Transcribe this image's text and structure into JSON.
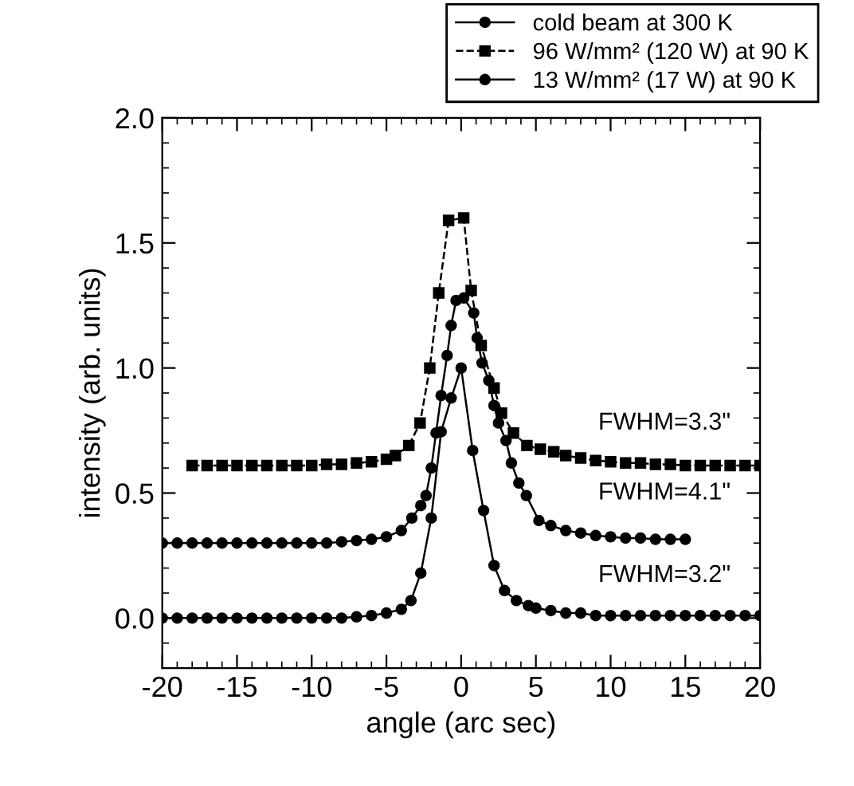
{
  "chart_data": {
    "type": "line",
    "xlabel": "angle (arc sec)",
    "ylabel": "intensity (arb. units)",
    "xlim": [
      -20,
      20
    ],
    "ylim": [
      -0.2,
      2.0
    ],
    "xticks": [
      -20,
      -15,
      -10,
      -5,
      0,
      5,
      10,
      15,
      20
    ],
    "yticks": [
      {
        "value": 0.0,
        "label": "0.0"
      },
      {
        "value": 0.5,
        "label": "0.5"
      },
      {
        "value": 1.0,
        "label": "1.0"
      },
      {
        "value": 1.5,
        "label": "1.5"
      },
      {
        "value": 2.0,
        "label": "2.0"
      }
    ],
    "grid": false,
    "legend": "top right",
    "series": [
      {
        "name": "cold beam at 300 K",
        "color": "#000000",
        "marker": "circle",
        "line_style": "solid",
        "x": [
          -20,
          -19,
          -18,
          -17,
          -16,
          -15,
          -14,
          -13,
          -12,
          -11,
          -10,
          -9,
          -8,
          -7,
          -6,
          -5,
          -4.0,
          -3.36,
          -2.7,
          -2.0,
          -1.34,
          -0.67,
          0,
          0.77,
          1.5,
          2.2,
          2.9,
          3.7,
          4.5,
          5,
          6,
          7,
          8,
          9,
          10,
          11,
          12,
          13,
          14,
          15,
          16,
          17,
          18,
          19,
          20
        ],
        "values": [
          0,
          0,
          0,
          0,
          0,
          0,
          0,
          0,
          0,
          0,
          0,
          0,
          0,
          0.005,
          0.01,
          0.02,
          0.035,
          0.07,
          0.18,
          0.4,
          0.745,
          0.88,
          1.0,
          0.67,
          0.43,
          0.21,
          0.11,
          0.07,
          0.05,
          0.04,
          0.03,
          0.02,
          0.02,
          0.01,
          0.01,
          0.01,
          0.01,
          0.01,
          0.01,
          0.01,
          0.01,
          0.01,
          0.01,
          0.01,
          0.01
        ]
      },
      {
        "name": "96 W/mm² (120 W) at 90 K",
        "color": "#000000",
        "marker": "square",
        "line_style": "dashed",
        "x": [
          -18,
          -17,
          -16,
          -15,
          -14,
          -13,
          -12,
          -11,
          -10,
          -9,
          -8,
          -7,
          -6,
          -5,
          -4.4,
          -3.5,
          -2.75,
          -2.1,
          -1.5,
          -0.84,
          0.17,
          0.67,
          1.34,
          2.2,
          2.7,
          3.5,
          4.4,
          5.3,
          6.2,
          7,
          8,
          9,
          10,
          11,
          12,
          13,
          14,
          15,
          16,
          17,
          18,
          19,
          20
        ],
        "values": [
          0.61,
          0.61,
          0.61,
          0.61,
          0.61,
          0.61,
          0.61,
          0.61,
          0.61,
          0.615,
          0.615,
          0.62,
          0.625,
          0.635,
          0.65,
          0.69,
          0.78,
          1.0,
          1.3,
          1.59,
          1.6,
          1.31,
          1.09,
          0.92,
          0.82,
          0.74,
          0.69,
          0.675,
          0.665,
          0.65,
          0.64,
          0.63,
          0.625,
          0.62,
          0.62,
          0.615,
          0.615,
          0.61,
          0.61,
          0.61,
          0.61,
          0.61,
          0.61
        ]
      },
      {
        "name": "13 W/mm² (17 W) at 90 K",
        "color": "#000000",
        "marker": "circle",
        "line_style": "solid",
        "x": [
          -20,
          -19,
          -18,
          -17,
          -16,
          -15,
          -14,
          -13,
          -12,
          -11,
          -10,
          -9,
          -8,
          -7,
          -6,
          -5,
          -4,
          -3.3,
          -2.7,
          -2.35,
          -2.0,
          -1.68,
          -1.34,
          -0.94,
          -0.67,
          -0.34,
          0.17,
          0.84,
          1.07,
          1.4,
          1.85,
          2.2,
          2.5,
          3.0,
          3.36,
          3.86,
          4.36,
          5.2,
          6,
          7,
          8,
          9,
          10,
          11,
          12,
          13,
          14,
          15
        ],
        "values": [
          0.3,
          0.3,
          0.3,
          0.3,
          0.3,
          0.3,
          0.3,
          0.3,
          0.3,
          0.3,
          0.3,
          0.3,
          0.305,
          0.31,
          0.315,
          0.325,
          0.35,
          0.4,
          0.45,
          0.49,
          0.6,
          0.74,
          0.89,
          1.05,
          1.17,
          1.27,
          1.28,
          1.22,
          1.12,
          1.02,
          0.95,
          0.85,
          0.78,
          0.71,
          0.62,
          0.54,
          0.49,
          0.39,
          0.37,
          0.35,
          0.34,
          0.33,
          0.325,
          0.32,
          0.32,
          0.315,
          0.315,
          0.315
        ]
      }
    ],
    "annotations": [
      "FWHM=3.3\"",
      "FWHM=4.1\"",
      "FWHM=3.2\""
    ]
  }
}
